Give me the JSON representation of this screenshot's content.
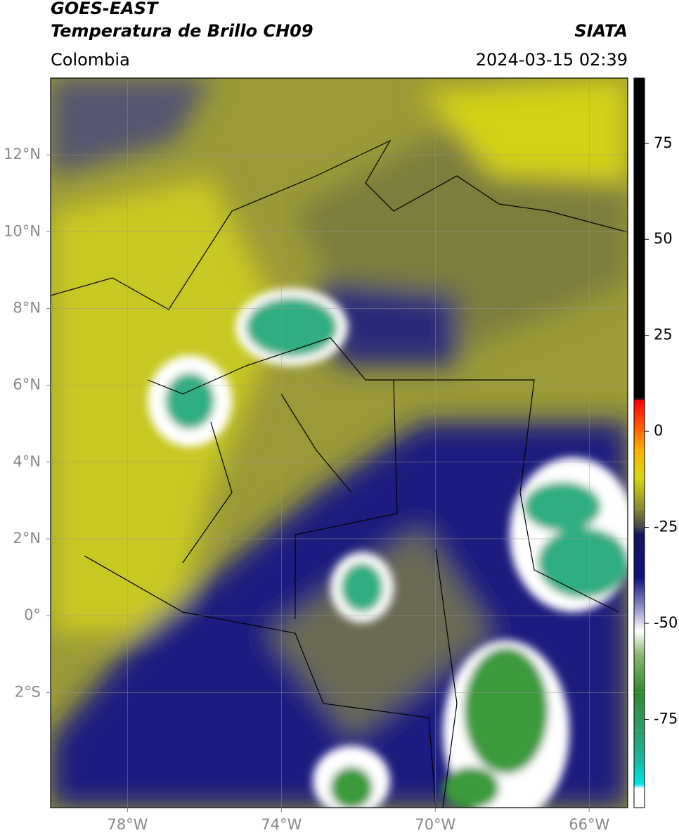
{
  "header": {
    "title_line1": "GOES-EAST",
    "title_line2": "Temperatura de Brillo CH09",
    "source": "SIATA",
    "region": "Colombia",
    "timestamp": "2024-03-15 02:39"
  },
  "map": {
    "xlim": [
      -80,
      -65
    ],
    "ylim": [
      -5,
      14
    ],
    "grid": true,
    "xticks": [
      {
        "value": -78,
        "label": "78°W"
      },
      {
        "value": -74,
        "label": "74°W"
      },
      {
        "value": -70,
        "label": "70°W"
      },
      {
        "value": -66,
        "label": "66°W"
      }
    ],
    "yticks": [
      {
        "value": 12,
        "label": "12°N"
      },
      {
        "value": 10,
        "label": "10°N"
      },
      {
        "value": 8,
        "label": "8°N"
      },
      {
        "value": 6,
        "label": "6°N"
      },
      {
        "value": 4,
        "label": "4°N"
      },
      {
        "value": 2,
        "label": "2°N"
      },
      {
        "value": 0,
        "label": "0°"
      },
      {
        "value": -2,
        "label": "2°S"
      }
    ]
  },
  "colorbar": {
    "lim": [
      -98,
      92
    ],
    "ticks": [
      75,
      50,
      25,
      0,
      -25,
      -50,
      -75
    ],
    "stops": [
      {
        "value": -98,
        "color": "#ffffff"
      },
      {
        "value": -93,
        "color": "#ffffff"
      },
      {
        "value": -92,
        "color": "#00e5e5"
      },
      {
        "value": -85,
        "color": "#1fb39c"
      },
      {
        "value": -78,
        "color": "#2e9e6e"
      },
      {
        "value": -68,
        "color": "#2f8a2f"
      },
      {
        "value": -58,
        "color": "#8ab870"
      },
      {
        "value": -52,
        "color": "#ffffff"
      },
      {
        "value": -45,
        "color": "#8080c0"
      },
      {
        "value": -38,
        "color": "#10107e"
      },
      {
        "value": -27,
        "color": "#14145e"
      },
      {
        "value": -25,
        "color": "#454550"
      },
      {
        "value": -20,
        "color": "#8a8a30"
      },
      {
        "value": -12,
        "color": "#d8d810"
      },
      {
        "value": -5,
        "color": "#ffb000"
      },
      {
        "value": 8,
        "color": "#ff0000"
      },
      {
        "value": 8.5,
        "color": "#000000"
      },
      {
        "value": 92,
        "color": "#000000"
      }
    ]
  }
}
